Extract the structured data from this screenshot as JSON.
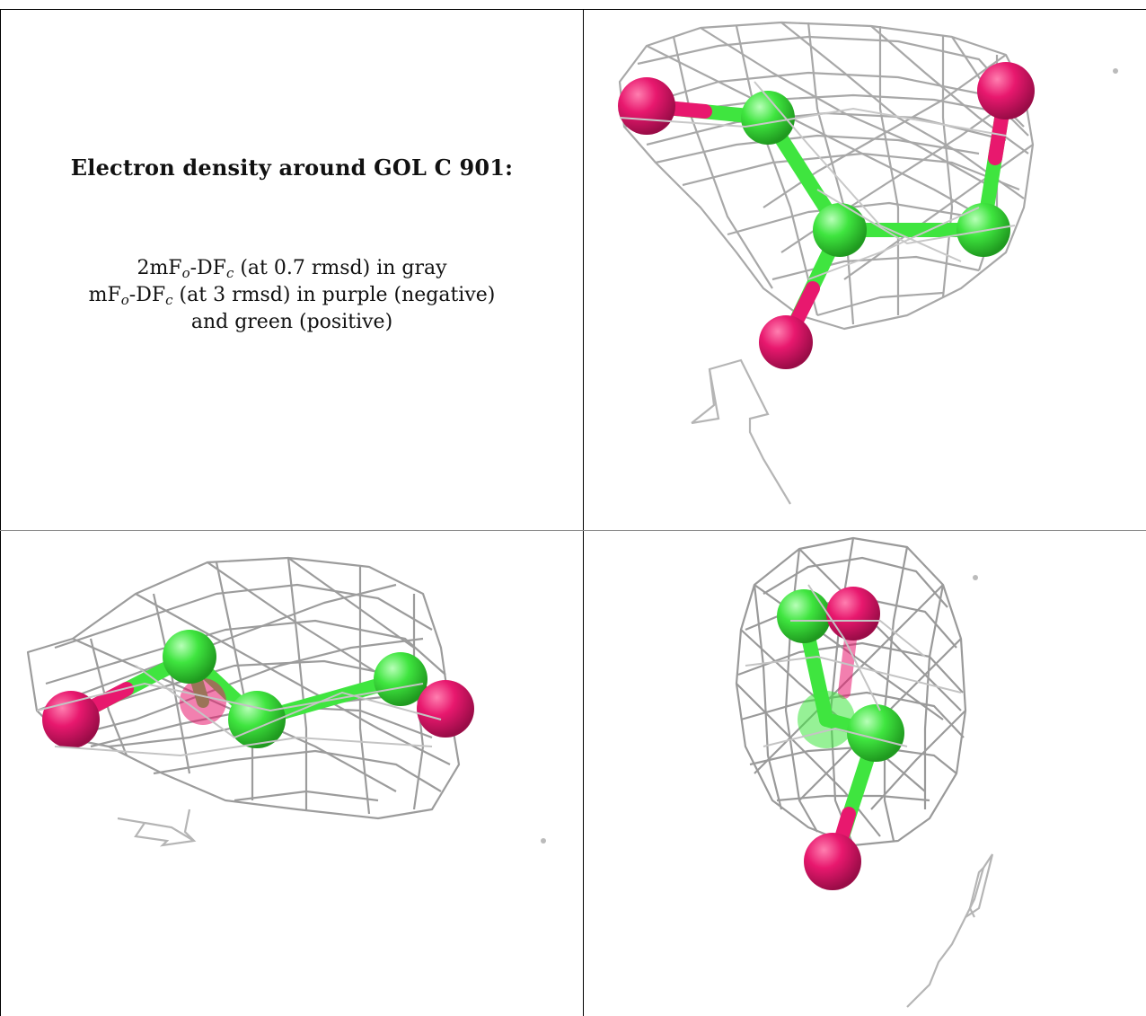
{
  "caption": {
    "title": "Electron density around GOL C 901:",
    "line1": {
      "prefix": "2mF",
      "sub1": "o",
      "mid": "-DF",
      "sub2": "c",
      "suffix": " (at 0.7 rmsd) in gray"
    },
    "line2": {
      "prefix": "mF",
      "sub1": "o",
      "mid": "-DF",
      "sub2": "c",
      "suffix": " (at 3 rmsd) in purple (negative)"
    },
    "line3": "and green (positive)"
  },
  "colors": {
    "oxygen": "#e8186e",
    "carbon": "#3fe53f",
    "mesh": "#9a9a9a",
    "border": "#000000",
    "background": "#ffffff"
  },
  "panels": [
    {
      "name": "view-top-right"
    },
    {
      "name": "view-bottom-left"
    },
    {
      "name": "view-bottom-right"
    }
  ]
}
